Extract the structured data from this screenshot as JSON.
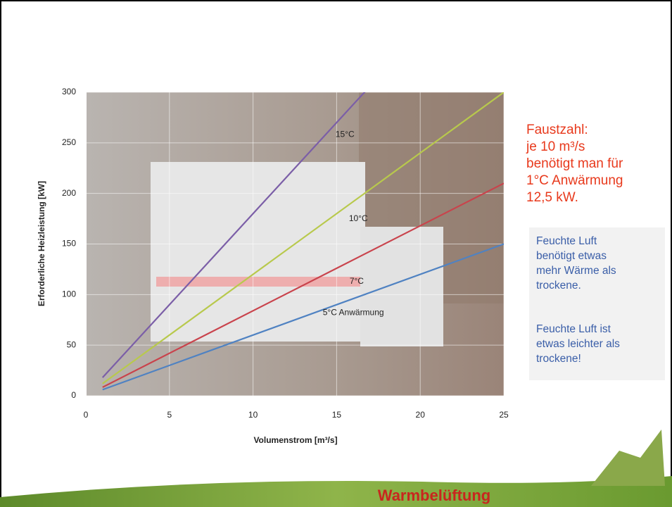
{
  "chart_data": {
    "type": "line",
    "x_label": "Volumenstrom [m³/s]",
    "y_label": "Erforderliche Heizleistung [kW]",
    "x": [
      1,
      25
    ],
    "series": [
      {
        "name": "15°C",
        "color": "#7b5ea7",
        "values": [
          18,
          450
        ]
      },
      {
        "name": "10°C",
        "color": "#b8c94c",
        "values": [
          12,
          300
        ]
      },
      {
        "name": "7°C",
        "color": "#c9434c",
        "values": [
          8.4,
          210
        ]
      },
      {
        "name": "5°C Anwärmung",
        "color": "#4f82c2",
        "values": [
          6,
          150
        ]
      }
    ],
    "xlim": [
      0,
      25
    ],
    "xticks": [
      0,
      5,
      10,
      15,
      20,
      25
    ],
    "ylim": [
      0,
      300
    ],
    "yticks": [
      0,
      50,
      100,
      150,
      200,
      250,
      300
    ],
    "grid": true
  },
  "rule_of_thumb": [
    "Faustzahl:",
    "je 10 m³/s",
    "benötigt man für",
    "1°C Anwärmung",
    "12,5 kW."
  ],
  "note_box": {
    "paragraph_1": [
      "Feuchte Luft",
      "benötigt etwas",
      "mehr Wärme als",
      "trockene."
    ],
    "paragraph_2": [
      "Feuchte Luft ist",
      "etwas leichter als",
      "trockene!"
    ]
  },
  "footer": "Warmbelüftung"
}
